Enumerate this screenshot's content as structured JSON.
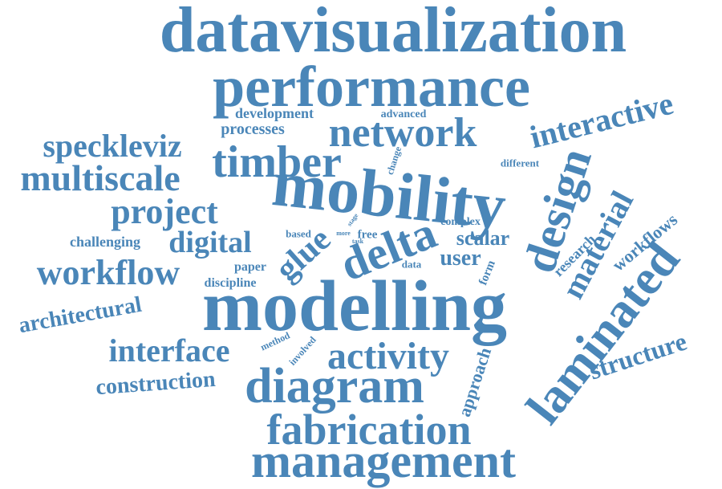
{
  "color": "#4a86b8",
  "words": [
    "datavisualization",
    "performance",
    "network",
    "interactive",
    "speckleviz",
    "timber",
    "multiscale",
    "mobility",
    "design",
    "project",
    "material",
    "digital",
    "glue",
    "delta",
    "workflow",
    "user",
    "scalar",
    "laminated",
    "modelling",
    "architectural",
    "workflows",
    "research",
    "interface",
    "activity",
    "structure",
    "construction",
    "diagram",
    "approach",
    "fabrication",
    "management",
    "development",
    "advanced",
    "processes",
    "change",
    "different",
    "challenging",
    "based",
    "more",
    "stage",
    "task",
    "free",
    "complex",
    "paper",
    "discipline",
    "data",
    "form",
    "method",
    "involved"
  ]
}
